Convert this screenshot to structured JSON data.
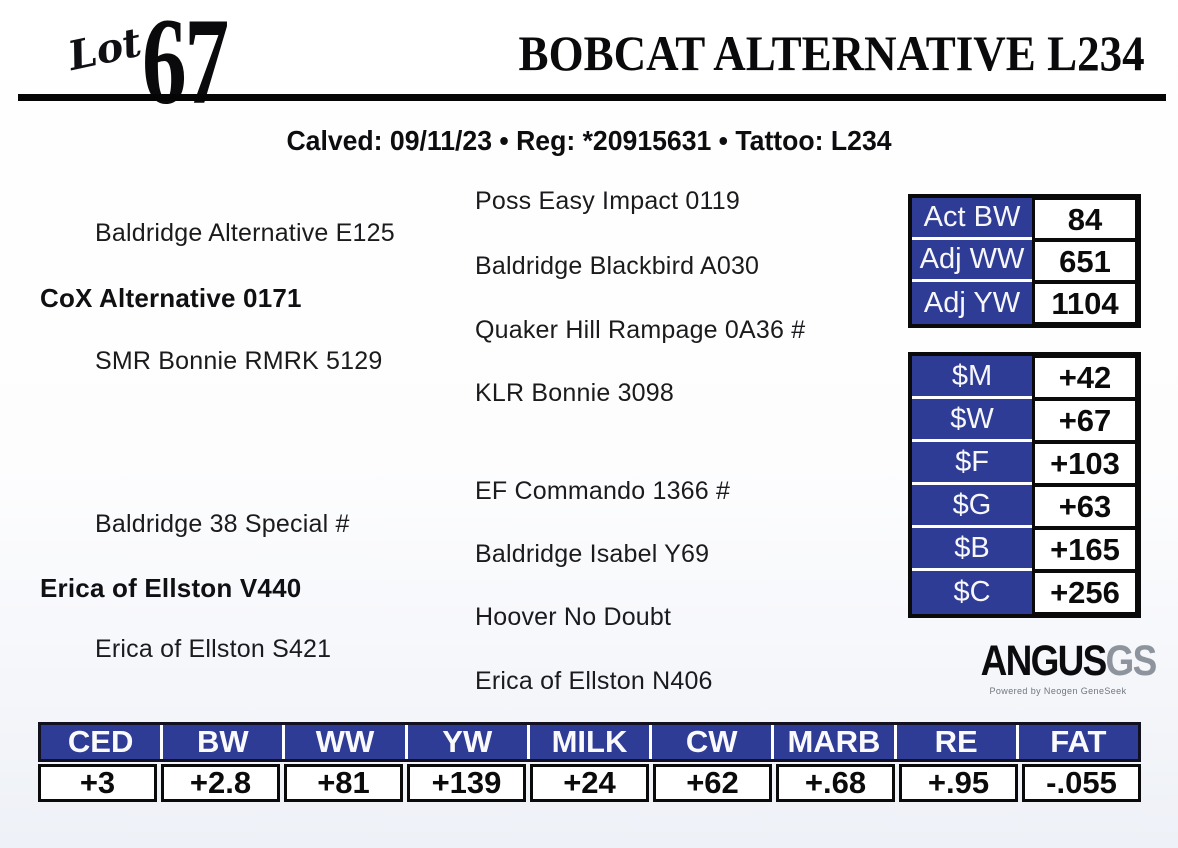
{
  "header": {
    "lot_label": "Lot",
    "lot_number": "67",
    "title": "BOBCAT ALTERNATIVE L234",
    "subtitle": "Calved: 09/11/23 • Reg: *20915631 • Tattoo: L234"
  },
  "pedigree": {
    "sire_block": {
      "name": "CoX Alternative 0171",
      "sire": "Baldridge Alternative E125",
      "dam": "SMR Bonnie RMRK 5129",
      "sire_sire": "Poss Easy Impact 0119",
      "sire_dam": "Baldridge Blackbird A030",
      "dam_sire": "Quaker Hill Rampage 0A36 #",
      "dam_dam": "KLR Bonnie 3098"
    },
    "dam_block": {
      "name": "Erica of Ellston V440",
      "sire": "Baldridge 38 Special #",
      "dam": "Erica of Ellston S421",
      "sire_sire": "EF Commando 1366 #",
      "sire_dam": "Baldridge Isabel Y69",
      "dam_sire": "Hoover No Doubt",
      "dam_dam": "Erica of Ellston N406"
    }
  },
  "performance": {
    "rows": [
      {
        "label": "Act BW",
        "value": "84"
      },
      {
        "label": "Adj WW",
        "value": "651"
      },
      {
        "label": "Adj YW",
        "value": "1104"
      }
    ]
  },
  "dollar_values": {
    "rows": [
      {
        "label": "$M",
        "value": "+42"
      },
      {
        "label": "$W",
        "value": "+67"
      },
      {
        "label": "$F",
        "value": "+103"
      },
      {
        "label": "$G",
        "value": "+63"
      },
      {
        "label": "$B",
        "value": "+165"
      },
      {
        "label": "$C",
        "value": "+256"
      }
    ]
  },
  "logo": {
    "brand": "ANGUS",
    "suffix": "GS",
    "tagline": "Powered by Neogen GeneSeek"
  },
  "epd": {
    "columns": [
      "CED",
      "BW",
      "WW",
      "YW",
      "MILK",
      "CW",
      "MARB",
      "RE",
      "FAT"
    ],
    "values": [
      "+3",
      "+2.8",
      "+81",
      "+139",
      "+24",
      "+62",
      "+.68",
      "+.95",
      "-.055"
    ]
  },
  "colors": {
    "table_blue": "#2e3c96",
    "ink": "#0b0b0e"
  }
}
